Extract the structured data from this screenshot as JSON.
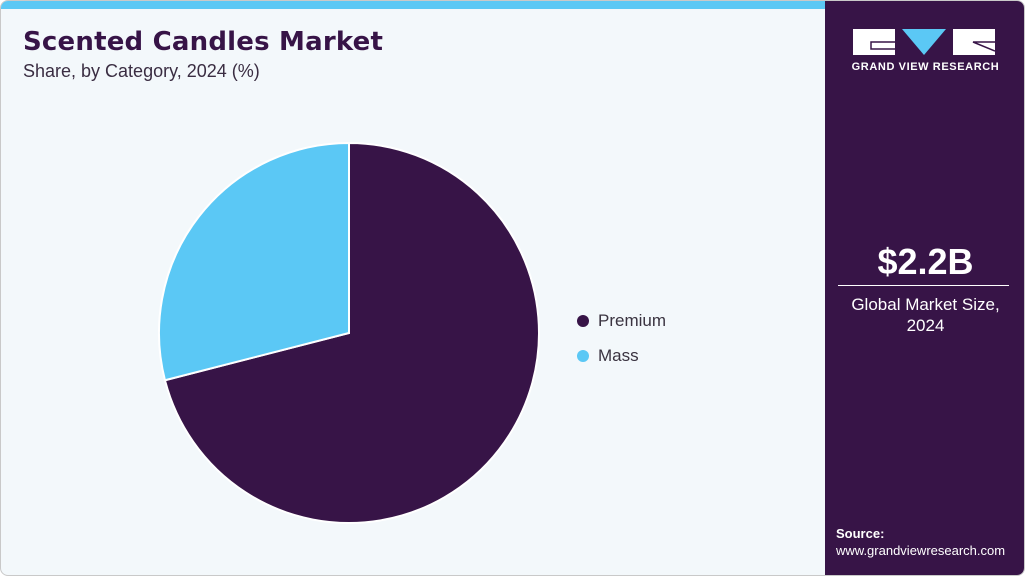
{
  "header": {
    "title": "Scented Candles Market",
    "subtitle": "Share, by Category, 2024 (%)"
  },
  "legend": {
    "items": [
      {
        "label": "Premium",
        "color": "#371447"
      },
      {
        "label": "Mass",
        "color": "#5bc8f5"
      }
    ]
  },
  "sidebar": {
    "brand": "GRAND VIEW RESEARCH",
    "market_value": "$2.2B",
    "market_label_line1": "Global Market Size,",
    "market_label_line2": "2024",
    "source_label": "Source:",
    "source_url": "www.grandviewresearch.com"
  },
  "colors": {
    "accent": "#5bc8f5",
    "brand": "#371447",
    "background": "#f3f8fb"
  },
  "chart_data": {
    "type": "pie",
    "title": "Scented Candles Market",
    "subtitle": "Share, by Category, 2024 (%)",
    "categories": [
      "Premium",
      "Mass"
    ],
    "values": [
      71,
      29
    ],
    "colors": [
      "#371447",
      "#5bc8f5"
    ],
    "start_angle": "12 o'clock, clockwise",
    "legend_position": "right",
    "annotations": [
      "$2.2B Global Market Size, 2024"
    ]
  }
}
